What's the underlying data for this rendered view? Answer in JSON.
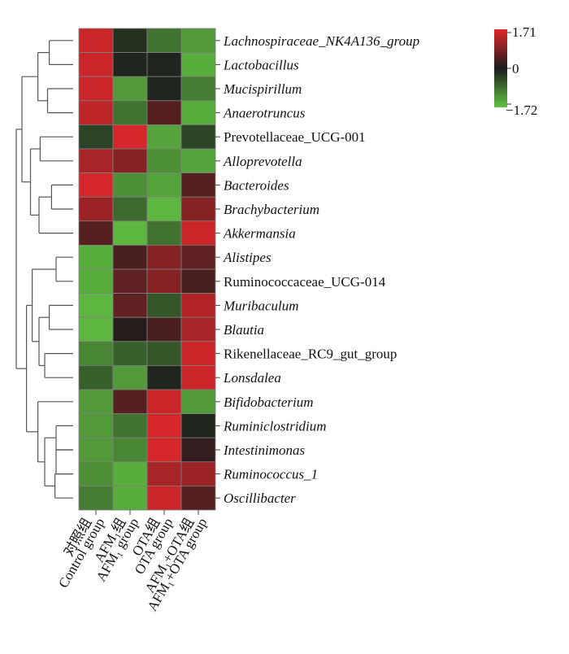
{
  "chart_data": {
    "type": "heatmap",
    "columns": [
      {
        "line1": "对照组",
        "line2": "Control group"
      },
      {
        "line1": "AFM₁组",
        "line2": "AFM₁ group"
      },
      {
        "line1": "OTA组",
        "line2": "OTA group"
      },
      {
        "line1": "AFM₁+OTA组",
        "line2": "AFM₁+OTA group"
      }
    ],
    "rows": [
      {
        "name": "Lachnospiraceae_NK4A136_group",
        "italic": true,
        "values": [
          1.5,
          -0.2,
          -0.9,
          -1.3
        ]
      },
      {
        "name": "Lactobacillus",
        "italic": true,
        "values": [
          1.5,
          -0.1,
          -0.1,
          -1.5
        ]
      },
      {
        "name": "Mucispirillum",
        "italic": true,
        "values": [
          1.5,
          -1.3,
          -0.1,
          -1.0
        ]
      },
      {
        "name": "Anaerotruncus",
        "italic": true,
        "values": [
          1.4,
          -0.9,
          0.5,
          -1.5
        ]
      },
      {
        "name": "Prevotellaceae_UCG-001",
        "italic": false,
        "values": [
          -0.4,
          1.6,
          -1.4,
          -0.4
        ]
      },
      {
        "name": "Alloprevotella",
        "italic": true,
        "values": [
          1.2,
          0.9,
          -1.2,
          -1.4
        ]
      },
      {
        "name": "Bacteroides",
        "italic": true,
        "values": [
          1.6,
          -1.2,
          -1.4,
          0.5
        ]
      },
      {
        "name": "Brachybacterium",
        "italic": true,
        "values": [
          1.1,
          -0.8,
          -1.6,
          0.9
        ]
      },
      {
        "name": "Akkermansia",
        "italic": true,
        "values": [
          0.5,
          -1.6,
          -0.9,
          1.5
        ]
      },
      {
        "name": "Alistipes",
        "italic": true,
        "values": [
          -1.5,
          0.4,
          0.9,
          0.6
        ]
      },
      {
        "name": "Ruminococcaceae_UCG-014",
        "italic": false,
        "values": [
          -1.5,
          0.6,
          0.9,
          0.4
        ]
      },
      {
        "name": "Muribaculum",
        "italic": true,
        "values": [
          -1.6,
          0.6,
          -0.6,
          1.3
        ]
      },
      {
        "name": "Blautia",
        "italic": true,
        "values": [
          -1.6,
          0.1,
          0.4,
          1.2
        ]
      },
      {
        "name": "Rikenellaceae_RC9_gut_group",
        "italic": false,
        "values": [
          -1.1,
          -0.7,
          -0.6,
          1.5
        ]
      },
      {
        "name": "Lonsdalea",
        "italic": true,
        "values": [
          -0.7,
          -1.3,
          -0.1,
          1.5
        ]
      },
      {
        "name": "Bifidobacterium",
        "italic": true,
        "values": [
          -1.3,
          0.5,
          1.5,
          -1.3
        ]
      },
      {
        "name": "Ruminiclostridium",
        "italic": true,
        "values": [
          -1.3,
          -0.9,
          1.6,
          -0.1
        ]
      },
      {
        "name": "Intestinimonas",
        "italic": true,
        "values": [
          -1.3,
          -1.1,
          1.6,
          0.2
        ]
      },
      {
        "name": "Ruminococcus_1",
        "italic": true,
        "values": [
          -1.2,
          -1.5,
          1.2,
          1.1
        ]
      },
      {
        "name": "Oscillibacter",
        "italic": true,
        "values": [
          -1.0,
          -1.5,
          1.5,
          0.5
        ]
      }
    ],
    "scale": {
      "min": -1.72,
      "mid": 0,
      "max": 1.71
    },
    "scale_labels": {
      "max": "1.71",
      "mid": "0",
      "min": "−1.72"
    },
    "colors": {
      "high": "#e2272b",
      "mid": "#1c1c1c",
      "low": "#62c242"
    },
    "row_dendrogram": true,
    "legend_position": "top-right"
  }
}
